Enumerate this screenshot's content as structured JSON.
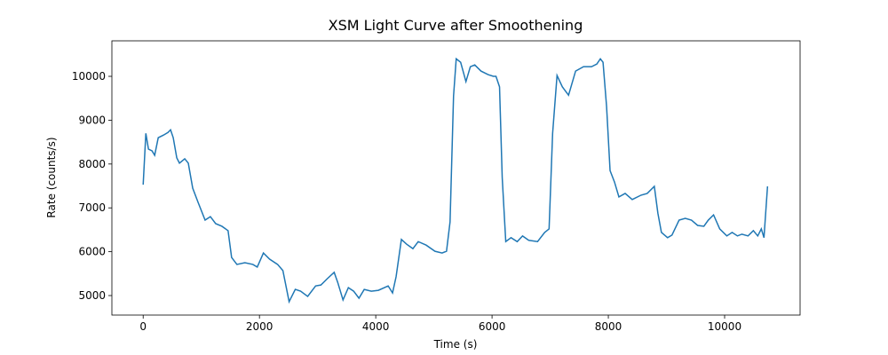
{
  "chart_data": {
    "type": "line",
    "title": "XSM Light Curve after Smoothening",
    "x_label": "Time (s)",
    "y_label": "Rate (counts/s)",
    "x": [
      0,
      46,
      91,
      152,
      198,
      259,
      350,
      426,
      471,
      517,
      578,
      624,
      715,
      776,
      852,
      943,
      1065,
      1156,
      1247,
      1354,
      1460,
      1521,
      1612,
      1749,
      1886,
      1962,
      2068,
      2175,
      2312,
      2403,
      2510,
      2616,
      2707,
      2829,
      2966,
      3057,
      3163,
      3285,
      3346,
      3437,
      3529,
      3620,
      3711,
      3802,
      3924,
      4046,
      4213,
      4289,
      4350,
      4441,
      4532,
      4639,
      4730,
      4867,
      5019,
      5141,
      5217,
      5278,
      5338,
      5384,
      5460,
      5551,
      5627,
      5703,
      5810,
      5932,
      6023,
      6068,
      6129,
      6175,
      6236,
      6327,
      6433,
      6525,
      6631,
      6783,
      6905,
      6981,
      7042,
      7118,
      7209,
      7316,
      7437,
      7574,
      7711,
      7802,
      7863,
      7909,
      7970,
      8030,
      8106,
      8182,
      8289,
      8411,
      8563,
      8669,
      8791,
      8852,
      8913,
      9019,
      9095,
      9217,
      9323,
      9430,
      9536,
      9643,
      9719,
      9810,
      9916,
      10038,
      10129,
      10221,
      10297,
      10403,
      10494,
      10570,
      10631,
      10677,
      10738
    ],
    "series": [
      {
        "name": "Rate",
        "color": "#1f77b4",
        "values": [
          7530,
          8700,
          8340,
          8300,
          8200,
          8600,
          8660,
          8720,
          8780,
          8600,
          8140,
          8020,
          8120,
          8020,
          7450,
          7130,
          6720,
          6800,
          6640,
          6580,
          6480,
          5870,
          5710,
          5750,
          5710,
          5650,
          5970,
          5830,
          5710,
          5570,
          4860,
          5140,
          5100,
          4980,
          5220,
          5240,
          5380,
          5530,
          5300,
          4900,
          5180,
          5100,
          4940,
          5140,
          5100,
          5120,
          5220,
          5060,
          5430,
          6280,
          6170,
          6070,
          6230,
          6150,
          6010,
          5970,
          6010,
          6680,
          9550,
          10400,
          10320,
          9880,
          10220,
          10260,
          10120,
          10040,
          10000,
          10000,
          9760,
          7690,
          6230,
          6320,
          6230,
          6360,
          6260,
          6230,
          6440,
          6520,
          8700,
          10020,
          9760,
          9570,
          10120,
          10220,
          10220,
          10280,
          10400,
          10320,
          9310,
          7850,
          7590,
          7250,
          7330,
          7190,
          7290,
          7330,
          7490,
          6880,
          6440,
          6320,
          6380,
          6720,
          6760,
          6720,
          6600,
          6580,
          6720,
          6840,
          6520,
          6360,
          6440,
          6360,
          6400,
          6360,
          6480,
          6360,
          6520,
          6320,
          7490
        ]
      }
    ],
    "xlim": [
      -538,
      11298
    ],
    "ylim": [
      4555,
      10810
    ],
    "xticks": [
      0,
      2000,
      4000,
      6000,
      8000,
      10000
    ],
    "yticks": [
      5000,
      6000,
      7000,
      8000,
      9000,
      10000
    ]
  }
}
